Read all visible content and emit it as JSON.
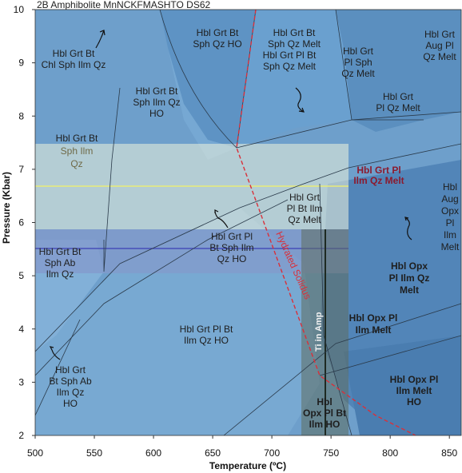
{
  "title": "2B Amphibolite MnNCKFMASHTO DS62",
  "axes": {
    "x_title": "Temperature (ºC)",
    "y_title": "Pressure (Kbar)",
    "x_ticks": [
      "500",
      "550",
      "600",
      "650",
      "700",
      "750",
      "800",
      "850"
    ],
    "y_ticks": [
      "2",
      "3",
      "4",
      "5",
      "6",
      "7",
      "8",
      "9",
      "10"
    ],
    "x_range": [
      500,
      860
    ],
    "y_range": [
      2,
      10
    ]
  },
  "fields": [
    {
      "key": "f1",
      "lines": [
        "Hbl Grt Bt",
        "Chl Sph Ilm Qz"
      ]
    },
    {
      "key": "f2",
      "lines": [
        "Hbl Grt Bt",
        "Sph Qz HO"
      ]
    },
    {
      "key": "f3",
      "lines": [
        "Hbl Grt Bt",
        "Sph Qz Melt"
      ]
    },
    {
      "key": "f4",
      "lines": [
        "Hbl Grt",
        "Pl Sph",
        "Qz Melt"
      ]
    },
    {
      "key": "f5",
      "lines": [
        "Hbl Grt",
        "Aug Pl",
        "Qz Melt"
      ]
    },
    {
      "key": "f6",
      "lines": [
        "Hbl Grt Pl Bt",
        "Sph Qz Melt"
      ]
    },
    {
      "key": "f7",
      "lines": [
        "Hbl Grt Bt",
        "Sph Ilm Qz",
        "HO"
      ]
    },
    {
      "key": "f8",
      "lines": [
        "Hbl Grt",
        "Pl Qz Melt"
      ]
    },
    {
      "key": "f10",
      "lines": [
        "Hbl Grt",
        "Pl Bt Ilm",
        "Qz Melt"
      ]
    },
    {
      "key": "f11",
      "lines": [
        "Hbl",
        "Aug",
        "Opx",
        "Pl",
        "Ilm",
        "Melt"
      ]
    },
    {
      "key": "f12",
      "lines": [
        "Hbl Grt Pl",
        "Bt Sph Ilm",
        "Qz HO"
      ]
    },
    {
      "key": "f13",
      "lines": [
        "Hbl Grt Bt",
        "Sph Ab",
        "Ilm Qz"
      ]
    },
    {
      "key": "f15",
      "lines": [
        "Hbl Grt Pl Bt",
        "Ilm Qz HO"
      ]
    },
    {
      "key": "f16",
      "lines": [
        "Hbl Grt",
        "Bt Sph Ab",
        "Ilm Qz",
        "HO"
      ]
    }
  ],
  "olive_field": {
    "lines": [
      "Hbl Grt Bt",
      "Sph Ilm",
      "Qz"
    ]
  },
  "red_field": {
    "lines": [
      "Hbl Grt Pl",
      "Ilm Qz Melt"
    ]
  },
  "bold_fields": [
    {
      "key": "b1",
      "lines": [
        "Hbl Opx",
        "Pl Ilm Qz",
        "Melt"
      ]
    },
    {
      "key": "b2",
      "lines": [
        "Hbl Opx Pl",
        "Ilm Melt"
      ]
    },
    {
      "key": "b3",
      "lines": [
        "Hbl Opx Pl",
        "Ilm Melt",
        "HO"
      ]
    },
    {
      "key": "b4",
      "lines": [
        "Hbl",
        "Opx Pl Bt",
        "Ilm HO"
      ]
    }
  ],
  "annotations": {
    "hydrated_solidus": "Hydrated Solidus",
    "ti_in_amp": "Ti in Amp"
  },
  "colors": {
    "field_base": "#6e9fcb",
    "band_light": "#eef3dc",
    "band_blue": "#3c5fc0",
    "solidus_red": "#d9303a",
    "grey_column": "#5e6e60"
  }
}
